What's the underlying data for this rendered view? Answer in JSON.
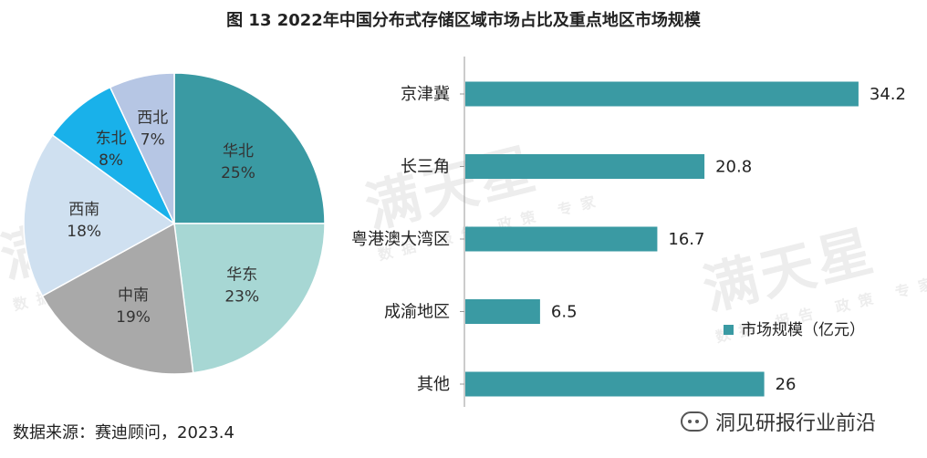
{
  "title": "图 13 2022年中国分布式存储区域市场占比及重点地区市场规模",
  "source": "数据来源：赛迪顾问，2023.4",
  "wechat": {
    "icon": "wechat-icon",
    "label": "洞见研报行业前沿"
  },
  "watermark": {
    "brand": "满天星",
    "tagline": "数据 报告 政策 专家"
  },
  "chart_data": [
    {
      "type": "pie",
      "slices": [
        {
          "label": "华北",
          "value": 25,
          "display": "25%",
          "color": "#3a9aa3"
        },
        {
          "label": "华东",
          "value": 23,
          "display": "23%",
          "color": "#a7d7d4"
        },
        {
          "label": "中南",
          "value": 19,
          "display": "19%",
          "color": "#a9a9a9"
        },
        {
          "label": "西南",
          "value": 18,
          "display": "18%",
          "color": "#cfe0f0"
        },
        {
          "label": "东北",
          "value": 8,
          "display": "8%",
          "color": "#19b1ea"
        },
        {
          "label": "西北",
          "value": 7,
          "display": "7%",
          "color": "#b6c6e4"
        }
      ],
      "start": "12 o'clock",
      "direction": "clockwise"
    },
    {
      "type": "bar",
      "orientation": "horizontal",
      "categories": [
        "京津冀",
        "长三角",
        "粤港澳大湾区",
        "成渝地区",
        "其他"
      ],
      "series": [
        {
          "name": "市场规模（亿元）",
          "values": [
            34.2,
            20.8,
            16.7,
            6.5,
            26
          ],
          "labels": [
            "34.2",
            "20.8",
            "16.7",
            "6.5",
            "26"
          ],
          "color": "#3a9aa3"
        }
      ],
      "xlim": [
        0,
        35
      ],
      "legend": "bottom-right",
      "grid": false
    }
  ]
}
